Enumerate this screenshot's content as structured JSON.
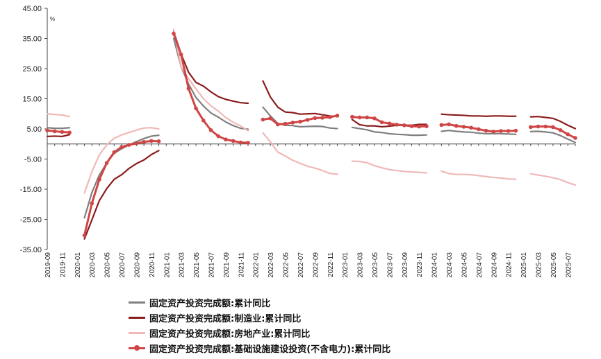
{
  "chart_data": {
    "type": "line",
    "title": "",
    "unit_label": "%",
    "ylim": [
      -35,
      45
    ],
    "yticks": [
      "45.00",
      "35.00",
      "25.00",
      "15.00",
      "5.00",
      "-5.00",
      "-15.00",
      "-25.00",
      "-35.00"
    ],
    "ytick_values": [
      45,
      35,
      25,
      15,
      5,
      -5,
      -15,
      -25,
      -35
    ],
    "x": [
      "2019-09",
      "2019-10",
      "2019-11",
      "2019-12",
      "2020-01",
      "2020-02",
      "2020-03",
      "2020-04",
      "2020-05",
      "2020-06",
      "2020-07",
      "2020-08",
      "2020-09",
      "2020-10",
      "2020-11",
      "2020-12",
      "2021-01",
      "2021-02",
      "2021-03",
      "2021-04",
      "2021-05",
      "2021-06",
      "2021-07",
      "2021-08",
      "2021-09",
      "2021-10",
      "2021-11",
      "2021-12",
      "2022-01",
      "2022-02",
      "2022-03",
      "2022-04",
      "2022-05",
      "2022-06",
      "2022-07",
      "2022-08",
      "2022-09",
      "2022-10",
      "2022-11",
      "2022-12",
      "2023-01",
      "2023-02",
      "2023-03",
      "2023-04",
      "2023-05",
      "2023-06",
      "2023-07",
      "2023-08",
      "2023-09",
      "2023-10",
      "2023-11",
      "2023-12",
      "2024-01",
      "2024-02",
      "2024-03",
      "2024-04",
      "2024-05",
      "2024-06",
      "2024-07",
      "2024-08",
      "2024-09",
      "2024-10",
      "2024-11",
      "2024-12",
      "2025-01",
      "2025-02",
      "2025-03",
      "2025-04",
      "2025-05",
      "2025-06",
      "2025-07",
      "2025-08"
    ],
    "x_tick_labels": [
      "2019-09",
      "2019-11",
      "2020-01",
      "2020-03",
      "2020-05",
      "2020-07",
      "2020-09",
      "2020-11",
      "2021-01",
      "2021-03",
      "2021-05",
      "2021-07",
      "2021-09",
      "2021-11",
      "2022-01",
      "2022-03",
      "2022-05",
      "2022-07",
      "2022-09",
      "2022-11",
      "2023-01",
      "2023-03",
      "2023-05",
      "2023-07",
      "2023-09",
      "2023-11",
      "2024-01",
      "2024-03",
      "2024-05",
      "2024-07",
      "2024-09",
      "2024-11",
      "2025-01",
      "2025-03",
      "2025-05",
      "2025-07"
    ],
    "series": [
      {
        "name": "固定资产投资完成额:累计同比",
        "color": "#7f7f7f",
        "markers": false,
        "values": [
          5.4,
          5.2,
          5.2,
          5.4,
          null,
          -24.5,
          -16.1,
          -10.3,
          -6.3,
          -3.1,
          -1.6,
          -0.3,
          0.8,
          1.8,
          2.6,
          2.9,
          null,
          35.0,
          25.6,
          19.9,
          15.4,
          12.6,
          10.3,
          8.9,
          7.3,
          6.1,
          5.2,
          4.9,
          null,
          12.2,
          9.3,
          6.8,
          6.2,
          6.1,
          5.7,
          5.8,
          5.9,
          5.8,
          5.3,
          5.1,
          null,
          5.5,
          5.1,
          4.7,
          4.0,
          3.8,
          3.4,
          3.2,
          3.1,
          2.9,
          2.9,
          3.0,
          null,
          4.2,
          4.5,
          4.2,
          4.0,
          3.9,
          3.6,
          3.4,
          3.4,
          3.4,
          3.3,
          3.2,
          null,
          4.1,
          4.2,
          4.0,
          3.7,
          2.8,
          1.6,
          0.5
        ]
      },
      {
        "name": "固定资产投资完成额:制造业:累计同比",
        "color": "#8b1c1c",
        "markers": false,
        "values": [
          2.5,
          2.6,
          2.5,
          3.1,
          null,
          -31.5,
          -25.2,
          -18.8,
          -14.8,
          -11.7,
          -10.2,
          -8.1,
          -6.5,
          -5.3,
          -3.5,
          -2.2,
          null,
          37.3,
          29.8,
          23.8,
          20.4,
          19.2,
          17.3,
          15.7,
          14.8,
          14.2,
          13.7,
          13.5,
          null,
          20.9,
          15.6,
          12.2,
          10.6,
          10.4,
          9.9,
          10.0,
          10.1,
          9.7,
          9.3,
          9.1,
          null,
          8.1,
          6.4,
          6.0,
          6.0,
          5.7,
          5.9,
          6.2,
          6.2,
          6.2,
          6.5,
          6.5,
          null,
          9.9,
          9.7,
          9.6,
          9.5,
          9.3,
          9.3,
          9.2,
          9.3,
          9.3,
          9.2,
          9.2,
          null,
          9.0,
          9.1,
          8.8,
          8.5,
          7.5,
          6.2,
          5.1
        ]
      },
      {
        "name": "固定资产投资完成额:房地产业:累计同比",
        "color": "#f0b8b8",
        "markers": false,
        "values": [
          10.0,
          9.8,
          9.6,
          9.1,
          null,
          -16.3,
          -9.2,
          -3.6,
          -0.3,
          1.9,
          3.0,
          3.8,
          4.6,
          5.3,
          5.4,
          5.0,
          null,
          38.0,
          25.6,
          21.6,
          18.3,
          15.0,
          12.7,
          10.9,
          8.8,
          7.2,
          6.0,
          4.4,
          null,
          3.7,
          0.7,
          -2.7,
          -4.0,
          -5.4,
          -6.4,
          -7.4,
          -8.0,
          -8.8,
          -9.8,
          -10.0,
          null,
          -5.7,
          -5.8,
          -6.2,
          -7.2,
          -7.9,
          -8.5,
          -8.8,
          -9.1,
          -9.3,
          -9.4,
          -9.6,
          null,
          -9.0,
          -9.8,
          -10.1,
          -10.1,
          -10.2,
          -10.5,
          -10.8,
          -11.1,
          -11.3,
          -11.6,
          -11.7,
          null,
          -9.9,
          -10.3,
          -10.7,
          -11.2,
          -11.8,
          -12.8,
          -13.6
        ]
      },
      {
        "name": "固定资产投资完成额:基础设施建设投资(不含电力):累计同比",
        "color": "#d04545",
        "markers": true,
        "values": [
          4.5,
          4.2,
          4.0,
          3.8,
          null,
          -30.3,
          -19.7,
          -11.8,
          -6.3,
          -2.7,
          -1.0,
          -0.3,
          0.2,
          0.7,
          1.0,
          0.9,
          null,
          36.6,
          29.7,
          18.4,
          11.8,
          7.8,
          4.6,
          2.6,
          1.5,
          1.0,
          0.5,
          0.4,
          null,
          8.1,
          8.5,
          6.5,
          6.7,
          7.1,
          7.4,
          8.0,
          8.6,
          8.7,
          8.9,
          9.4,
          null,
          9.0,
          8.8,
          8.8,
          8.5,
          7.2,
          6.8,
          6.4,
          6.2,
          5.9,
          5.8,
          5.9,
          null,
          6.3,
          6.5,
          6.0,
          5.7,
          5.4,
          4.9,
          4.4,
          4.1,
          4.3,
          4.3,
          4.4,
          null,
          5.6,
          5.8,
          5.8,
          5.6,
          4.6,
          3.2,
          2.0
        ]
      }
    ],
    "grid": false,
    "legend_position": "bottom"
  }
}
